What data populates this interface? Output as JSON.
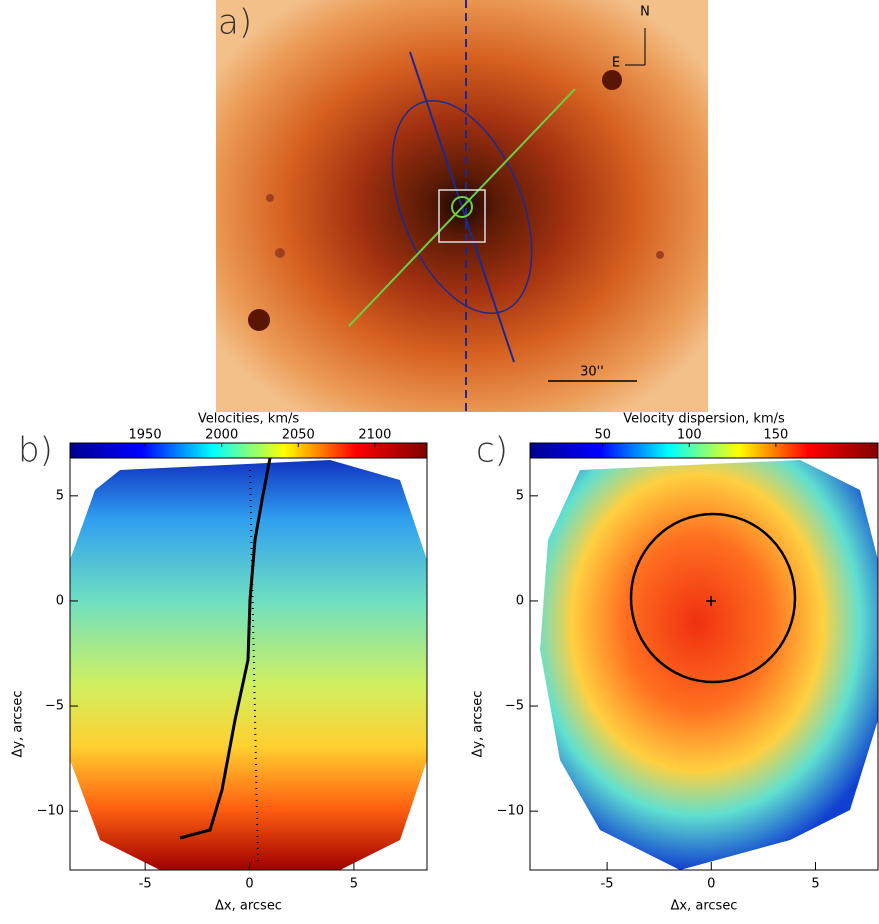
{
  "chart_data": [
    {
      "type": "image",
      "label": "a)",
      "north": "N",
      "east": "E",
      "scale_label": "30''"
    },
    {
      "type": "heatmap",
      "label": "b)",
      "title": "Velocities, km/s",
      "xlabel": "Δx, arcsec",
      "ylabel": "Δy, arcsec",
      "xlim": [
        -8.6,
        8.5
      ],
      "ylim": [
        -12.8,
        6.8
      ],
      "xticks": [
        -5,
        0,
        5
      ],
      "yticks": [
        5,
        0,
        {
          "value": -5,
          "label": "−5"
        },
        {
          "value": -10,
          "label": "−10"
        }
      ],
      "colorbar_lim": [
        1901,
        2134
      ],
      "colorbar_ticks": [
        1950,
        2000,
        2050,
        2100
      ],
      "colormap": [
        "#00008f",
        "#0000ff",
        "#00ffff",
        "#ffff00",
        "#ff0000",
        "#800000"
      ]
    },
    {
      "type": "heatmap",
      "label": "c)",
      "title": "Velocity dispersion, km/s",
      "xlabel": "Δx, arcsec",
      "ylabel": "Δy, arcsec",
      "xlim": [
        -8.7,
        8.0
      ],
      "ylim": [
        -12.8,
        6.8
      ],
      "xticks": [
        -5,
        0,
        5
      ],
      "yticks": [
        5,
        0,
        {
          "value": -5,
          "label": "−5"
        },
        {
          "value": -10,
          "label": "−10"
        }
      ],
      "colorbar_lim": [
        8,
        209
      ],
      "colorbar_ticks": [
        50,
        100,
        150
      ],
      "colormap": [
        "#00008f",
        "#0000ff",
        "#00ffff",
        "#ffff00",
        "#ff0000",
        "#800000"
      ]
    }
  ]
}
